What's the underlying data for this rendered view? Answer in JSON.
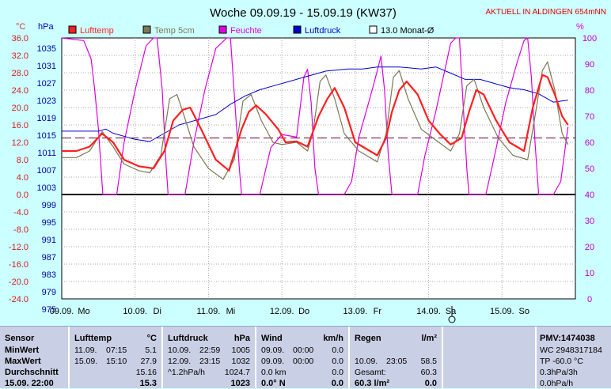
{
  "chart_data": {
    "type": "line",
    "title": "Woche 09.09.19 - 15.09.19 (KW37)",
    "top_right_note": "AKTUELL IN ALDINGEN 654mNN",
    "left_axis_1": {
      "unit": "°C",
      "ticks": [
        "36.0",
        "32.0",
        "28.0",
        "24.0",
        "20.0",
        "16.0",
        "12.0",
        "8.0",
        "4.0",
        "0.0",
        "-4.0",
        "-8.0",
        "-12.0",
        "-16.0",
        "-20.0",
        "-24.0"
      ],
      "range": [
        -24,
        36
      ]
    },
    "left_axis_2": {
      "unit": "hPa",
      "ticks": [
        "1035",
        "1031",
        "1027",
        "1023",
        "1019",
        "1015",
        "1011",
        "1007",
        "1003",
        "999",
        "995",
        "991",
        "987",
        "983",
        "979",
        "975"
      ],
      "range": [
        975,
        1038
      ]
    },
    "right_axis": {
      "unit": "%",
      "ticks": [
        "100",
        "90",
        "80",
        "70",
        "60",
        "50",
        "40",
        "30",
        "20",
        "10",
        "0"
      ],
      "range": [
        0,
        100
      ]
    },
    "x_labels": [
      {
        "date": "09.09.",
        "day": "Mo"
      },
      {
        "date": "10.09.",
        "day": "Di"
      },
      {
        "date": "11.09.",
        "day": "Mi"
      },
      {
        "date": "12.09.",
        "day": "Do"
      },
      {
        "date": "13.09.",
        "day": "Fr"
      },
      {
        "date": "14.09.",
        "day": "Sa"
      },
      {
        "date": "15.09.",
        "day": "So"
      }
    ],
    "x_unit": "days since 09.09. 00:00",
    "reference_line": {
      "name": "13.0 Monat-Ø",
      "value": 13.0
    },
    "series": [
      {
        "name": "Lufttemp",
        "color": "#ff2020",
        "axis": "temp",
        "points": [
          [
            0,
            10
          ],
          [
            0.2,
            10
          ],
          [
            0.38,
            11
          ],
          [
            0.55,
            14
          ],
          [
            0.7,
            12
          ],
          [
            0.85,
            8
          ],
          [
            1.05,
            6.5
          ],
          [
            1.25,
            6
          ],
          [
            1.4,
            10
          ],
          [
            1.52,
            17
          ],
          [
            1.65,
            19.5
          ],
          [
            1.75,
            20
          ],
          [
            1.9,
            15
          ],
          [
            2.1,
            8
          ],
          [
            2.28,
            5.5
          ],
          [
            2.45,
            15
          ],
          [
            2.55,
            19
          ],
          [
            2.65,
            20.5
          ],
          [
            2.78,
            18.5
          ],
          [
            2.95,
            15
          ],
          [
            3.05,
            12
          ],
          [
            3.2,
            12.2
          ],
          [
            3.35,
            11
          ],
          [
            3.5,
            18
          ],
          [
            3.62,
            22
          ],
          [
            3.72,
            24.5
          ],
          [
            3.85,
            20
          ],
          [
            4.0,
            12
          ],
          [
            4.3,
            9
          ],
          [
            4.42,
            13
          ],
          [
            4.5,
            19
          ],
          [
            4.6,
            24
          ],
          [
            4.7,
            26
          ],
          [
            4.85,
            23
          ],
          [
            5.0,
            17
          ],
          [
            5.15,
            14
          ],
          [
            5.3,
            11.5
          ],
          [
            5.45,
            13
          ],
          [
            5.55,
            19
          ],
          [
            5.65,
            24
          ],
          [
            5.75,
            23
          ],
          [
            5.92,
            17
          ],
          [
            6.1,
            12
          ],
          [
            6.3,
            10
          ],
          [
            6.42,
            20
          ],
          [
            6.55,
            27.5
          ],
          [
            6.62,
            27
          ],
          [
            6.72,
            23
          ],
          [
            6.82,
            18
          ],
          [
            6.9,
            16
          ]
        ]
      },
      {
        "name": "Temp 5cm",
        "color": "#7c7856",
        "axis": "temp",
        "points": [
          [
            0,
            8.5
          ],
          [
            0.2,
            8.5
          ],
          [
            0.38,
            10
          ],
          [
            0.55,
            14.5
          ],
          [
            0.7,
            11
          ],
          [
            0.85,
            7
          ],
          [
            1.05,
            5.5
          ],
          [
            1.2,
            5
          ],
          [
            1.35,
            9
          ],
          [
            1.47,
            22
          ],
          [
            1.57,
            23
          ],
          [
            1.67,
            18
          ],
          [
            1.8,
            11
          ],
          [
            2.0,
            6
          ],
          [
            2.2,
            3.5
          ],
          [
            2.35,
            8
          ],
          [
            2.47,
            21.5
          ],
          [
            2.58,
            23
          ],
          [
            2.72,
            17
          ],
          [
            2.88,
            12
          ],
          [
            3.0,
            11.5
          ],
          [
            3.2,
            12
          ],
          [
            3.35,
            10
          ],
          [
            3.42,
            14
          ],
          [
            3.52,
            26
          ],
          [
            3.6,
            27.5
          ],
          [
            3.72,
            22
          ],
          [
            3.85,
            14
          ],
          [
            4.05,
            10
          ],
          [
            4.3,
            7.5
          ],
          [
            4.42,
            14
          ],
          [
            4.52,
            27
          ],
          [
            4.6,
            28.5
          ],
          [
            4.72,
            22
          ],
          [
            4.9,
            15
          ],
          [
            5.1,
            12.5
          ],
          [
            5.3,
            10
          ],
          [
            5.42,
            14
          ],
          [
            5.52,
            25
          ],
          [
            5.62,
            26.5
          ],
          [
            5.75,
            20
          ],
          [
            5.95,
            13
          ],
          [
            6.15,
            9
          ],
          [
            6.35,
            8
          ],
          [
            6.45,
            18
          ],
          [
            6.55,
            28.5
          ],
          [
            6.62,
            30.5
          ],
          [
            6.72,
            24
          ],
          [
            6.82,
            14
          ],
          [
            6.9,
            11.5
          ]
        ]
      },
      {
        "name": "Feuchte",
        "color": "#e000e0",
        "axis": "humidity",
        "points": [
          [
            0,
            100
          ],
          [
            0.3,
            99
          ],
          [
            0.4,
            92
          ],
          [
            0.45,
            80
          ],
          [
            0.5,
            65
          ],
          [
            0.56,
            40
          ],
          [
            0.75,
            40
          ],
          [
            0.85,
            60
          ],
          [
            1.0,
            80
          ],
          [
            1.15,
            97
          ],
          [
            1.25,
            100
          ],
          [
            1.3,
            100
          ],
          [
            1.37,
            80
          ],
          [
            1.42,
            52
          ],
          [
            1.45,
            40
          ],
          [
            1.68,
            40
          ],
          [
            1.8,
            60
          ],
          [
            1.95,
            80
          ],
          [
            2.1,
            96
          ],
          [
            2.25,
            100
          ],
          [
            2.3,
            100
          ],
          [
            2.36,
            75
          ],
          [
            2.42,
            50
          ],
          [
            2.45,
            40
          ],
          [
            2.7,
            40
          ],
          [
            2.85,
            58
          ],
          [
            3.0,
            63
          ],
          [
            3.2,
            62
          ],
          [
            3.3,
            85
          ],
          [
            3.35,
            88
          ],
          [
            3.4,
            75
          ],
          [
            3.45,
            50
          ],
          [
            3.5,
            40
          ],
          [
            3.85,
            40
          ],
          [
            3.95,
            45
          ],
          [
            4.05,
            62
          ],
          [
            4.15,
            72
          ],
          [
            4.25,
            82
          ],
          [
            4.35,
            93
          ],
          [
            4.4,
            80
          ],
          [
            4.45,
            55
          ],
          [
            4.5,
            40
          ],
          [
            4.85,
            40
          ],
          [
            4.95,
            55
          ],
          [
            5.1,
            72
          ],
          [
            5.2,
            85
          ],
          [
            5.3,
            98
          ],
          [
            5.37,
            100
          ],
          [
            5.42,
            100
          ],
          [
            5.47,
            75
          ],
          [
            5.52,
            50
          ],
          [
            5.55,
            40
          ],
          [
            5.78,
            40
          ],
          [
            5.9,
            55
          ],
          [
            6.05,
            75
          ],
          [
            6.2,
            90
          ],
          [
            6.3,
            99
          ],
          [
            6.35,
            100
          ],
          [
            6.4,
            85
          ],
          [
            6.45,
            60
          ],
          [
            6.5,
            40
          ],
          [
            6.7,
            40
          ],
          [
            6.8,
            45
          ],
          [
            6.9,
            66
          ]
        ]
      },
      {
        "name": "Luftdruck",
        "color": "#0000cc",
        "axis": "pressure",
        "points": [
          [
            0,
            1015.5
          ],
          [
            0.5,
            1015.5
          ],
          [
            0.6,
            1016
          ],
          [
            0.7,
            1015
          ],
          [
            0.9,
            1014
          ],
          [
            1.0,
            1013.5
          ],
          [
            1.2,
            1013
          ],
          [
            1.4,
            1015
          ],
          [
            1.6,
            1017
          ],
          [
            1.8,
            1018
          ],
          [
            2.1,
            1019.5
          ],
          [
            2.3,
            1022
          ],
          [
            2.5,
            1024
          ],
          [
            2.7,
            1025.5
          ],
          [
            2.9,
            1026.5
          ],
          [
            3.1,
            1027.5
          ],
          [
            3.4,
            1029
          ],
          [
            3.6,
            1030
          ],
          [
            3.9,
            1030.5
          ],
          [
            4.1,
            1030.5
          ],
          [
            4.3,
            1031
          ],
          [
            4.6,
            1031
          ],
          [
            4.9,
            1030.5
          ],
          [
            5.1,
            1031
          ],
          [
            5.3,
            1029.5
          ],
          [
            5.5,
            1028
          ],
          [
            5.7,
            1028
          ],
          [
            5.9,
            1027
          ],
          [
            6.1,
            1026
          ],
          [
            6.3,
            1025.5
          ],
          [
            6.5,
            1024.5
          ],
          [
            6.7,
            1022.5
          ],
          [
            6.9,
            1023
          ]
        ]
      }
    ]
  },
  "panel": {
    "sensor": {
      "title": "Sensor",
      "rows": [
        "MinWert",
        "MaxWert",
        "Durchschnitt",
        "15.09. 22:00"
      ]
    },
    "lufttemp": {
      "title": "Lufttemp",
      "unit": "°C",
      "min_date": "11.09.",
      "min_time": "07:15",
      "min_val": "5.1",
      "max_date": "15.09.",
      "max_time": "15:10",
      "max_val": "27.9",
      "avg": "15.16",
      "cur": "15.3"
    },
    "luftdruck": {
      "title": "Luftdruck",
      "unit": "hPa",
      "min_date": "10.09.",
      "min_time": "22:59",
      "min_val": "1005",
      "max_date": "12.09.",
      "max_time": "23:15",
      "max_val": "1032",
      "trend": "^1.2hPa/h",
      "avg": "1024.7",
      "cur": "1023"
    },
    "wind": {
      "title": "Wind",
      "unit": "km/h",
      "min_date": "09.09.",
      "min_time": "00:00",
      "min_val": "0.0",
      "max_date": "09.09.",
      "max_time": "00:00",
      "max_val": "0.0",
      "dist": "0.0 km",
      "avg": "0.0",
      "cur_dir": "0.0° N",
      "cur": "0.0"
    },
    "regen": {
      "title": "Regen",
      "unit": "l/m²",
      "max_date": "10.09.",
      "max_time": "23:05",
      "max_val": "58.5",
      "total_label": "Gesamt:",
      "total_val": "60.3",
      "cur_label": "60.3 l/m²",
      "cur": "0.0"
    },
    "pmv": {
      "title": "PMV:1474038",
      "wc": "WC 2948317184",
      "tp": "TP -60.0 °C",
      "trend": "0.3hPa/3h",
      "last": "0.0hPa/h"
    }
  }
}
